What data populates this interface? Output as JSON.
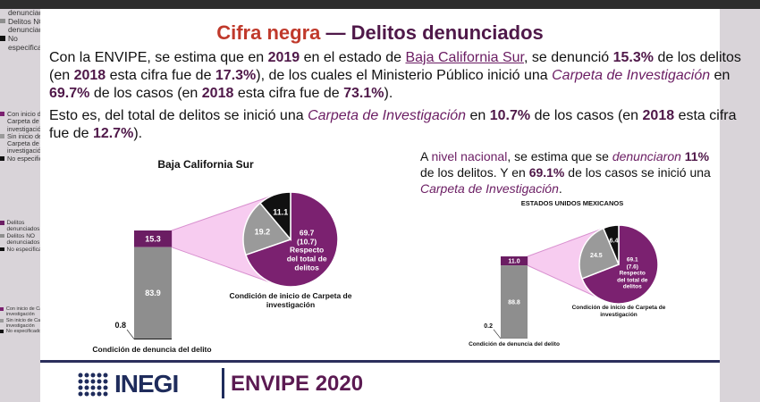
{
  "slide": {
    "title": [
      "Cifra negra",
      "— Delitos denunciados"
    ],
    "paragraphs": [
      [
        "Con la ENVIPE, se estima que en ",
        "2019",
        " en el estado de ",
        "Baja California Sur",
        ", se denunció ",
        "15.3%",
        " de los delitos (en ",
        "2018",
        " esta cifra fue de ",
        "17.3%",
        "), de los cuales el Ministerio Público inició una ",
        "Carpeta de Investigación",
        " en ",
        "69.7%",
        " de los casos (en ",
        "2018",
        " esta cifra fue de ",
        "73.1%",
        ")."
      ],
      [
        "Esto es, del total de delitos se inició una ",
        "Carpeta de Investigación",
        " en ",
        "10.7%",
        " de los casos (en ",
        "2018",
        " esta cifra fue de ",
        "12.7%",
        ")."
      ],
      [
        "A ",
        "nivel nacional",
        ", se estima que se ",
        "denunciaron",
        "11%",
        " de los delitos. Y en ",
        "69.1%",
        " de los casos se inició una ",
        "Carpeta de Investigación",
        "."
      ]
    ],
    "footer": {
      "logo": "INEGI",
      "survey": "ENVIPE 2020"
    }
  },
  "chart_data": [
    {
      "type": "bar-of-pie",
      "title": "Baja California Sur",
      "bar_label": "Condición de denuncia del delito",
      "bar_series": [
        {
          "name": "Delitos denunciados",
          "color": "#6b1d63",
          "value": 15.3
        },
        {
          "name": "Delitos NO denunciados",
          "color": "#8e8e8e",
          "value": 83.9
        },
        {
          "name": "No especificado",
          "color": "#111111",
          "value": 0.8
        }
      ],
      "pie_label": "Condición de inicio de Carpeta de investigación",
      "pie_series": [
        {
          "name": "Con inicio de Carpeta de investigación",
          "color": "#7b2170",
          "value": 69.7,
          "total_share": 10.7,
          "total_share_label": "(10.7)",
          "note": "Respecto del total de delitos"
        },
        {
          "name": "Sin inicio de Carpeta de investigación",
          "color": "#9a9a9a",
          "value": 19.2
        },
        {
          "name": "No especificado",
          "color": "#111111",
          "value": 11.1
        }
      ]
    },
    {
      "type": "bar-of-pie",
      "title": "ESTADOS UNIDOS MEXICANOS",
      "bar_label": "Condición de denuncia del delito",
      "bar_series": [
        {
          "name": "Delitos denunciados",
          "color": "#6b1d63",
          "value": 11.0,
          "value_label": "11.0"
        },
        {
          "name": "Delitos NO denunciados",
          "color": "#8e8e8e",
          "value": 88.8
        },
        {
          "name": "No especificado",
          "color": "#111111",
          "value": 0.2
        }
      ],
      "pie_label": "Condición de inicio de Carpeta de investigación",
      "pie_series": [
        {
          "name": "Con inicio de Carpeta de investigación",
          "color": "#7b2170",
          "value": 69.1,
          "total_share": 7.6,
          "total_share_label": "(7.6)",
          "note": "Respecto del total de delitos"
        },
        {
          "name": "Sin inicio de Carpeta de investigación",
          "color": "#9a9a9a",
          "value": 24.5
        },
        {
          "name": "No especificado",
          "color": "#111111",
          "value": 6.4
        }
      ]
    }
  ]
}
